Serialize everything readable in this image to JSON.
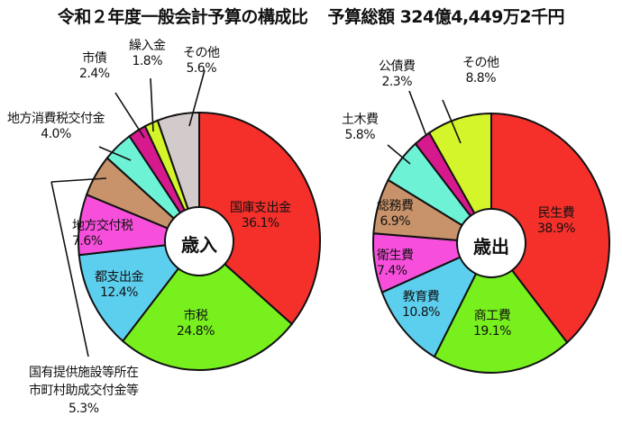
{
  "title": {
    "main": "令和２年度一般会計予算の構成比",
    "total_label": "予算総額",
    "total_value": "324億4,449万2千円"
  },
  "chart_data": [
    {
      "type": "pie",
      "title": "歳入",
      "unit": "%",
      "categories": [
        "国庫支出金",
        "市税",
        "都支出金",
        "国有提供施設等所在市町村助成交付金等",
        "地方交付税",
        "地方消費税交付金",
        "市債",
        "繰入金",
        "その他"
      ],
      "values": [
        36.1,
        24.8,
        12.4,
        5.3,
        7.6,
        4.0,
        2.4,
        1.8,
        5.6
      ],
      "slice_order_clockwise_from_top": [
        "国庫支出金",
        "市税",
        "都支出金",
        "地方交付税",
        "国有提供施設等所在市町村助成交付金等",
        "地方消費税交付金",
        "市債",
        "繰入金",
        "その他"
      ],
      "colors": {
        "国庫支出金": "#f5302b",
        "市税": "#78f01e",
        "都支出金": "#5dcfee",
        "地方交付税": "#f74fdc",
        "国有提供施設等所在市町村助成交付金等": "#c8926a",
        "地方消費税交付金": "#6ef2d6",
        "市債": "#d6198c",
        "繰入金": "#d4f52a",
        "その他": "#d3cbcb"
      }
    },
    {
      "type": "pie",
      "title": "歳出",
      "unit": "%",
      "categories": [
        "民生費",
        "商工費",
        "教育費",
        "衛生費",
        "総務費",
        "土木費",
        "公債費",
        "その他"
      ],
      "values": [
        38.9,
        19.1,
        10.8,
        7.4,
        6.9,
        5.8,
        2.3,
        8.8
      ],
      "colors": {
        "民生費": "#f5302b",
        "商工費": "#78f01e",
        "教育費": "#5dcfee",
        "衛生費": "#f74fdc",
        "総務費": "#c8926a",
        "土木費": "#6ef2d6",
        "公債費": "#d6198c",
        "その他": "#d4f52a"
      }
    }
  ],
  "revenue": {
    "center": "歳入",
    "labels": {
      "national": {
        "name": "国庫支出金",
        "pct": "36.1%"
      },
      "citytax": {
        "name": "市税",
        "pct": "24.8%"
      },
      "metro": {
        "name": "都支出金",
        "pct": "12.4%"
      },
      "localalloc": {
        "name": "地方交付税",
        "pct": "7.6%"
      },
      "facility": {
        "name1": "国有提供施設等所在",
        "name2": "市町村助成交付金等",
        "pct": "5.3%"
      },
      "consumption": {
        "name": "地方消費税交付金",
        "pct": "4.0%"
      },
      "bond": {
        "name": "市債",
        "pct": "2.4%"
      },
      "transfer": {
        "name": "繰入金",
        "pct": "1.8%"
      },
      "other": {
        "name": "その他",
        "pct": "5.6%"
      }
    }
  },
  "expenditure": {
    "center": "歳出",
    "labels": {
      "welfare": {
        "name": "民生費",
        "pct": "38.9%"
      },
      "commerce": {
        "name": "商工費",
        "pct": "19.1%"
      },
      "education": {
        "name": "教育費",
        "pct": "10.8%"
      },
      "health": {
        "name": "衛生費",
        "pct": "7.4%"
      },
      "general": {
        "name": "総務費",
        "pct": "6.9%"
      },
      "civil": {
        "name": "土木費",
        "pct": "5.8%"
      },
      "debt": {
        "name": "公債費",
        "pct": "2.3%"
      },
      "other": {
        "name": "その他",
        "pct": "8.8%"
      }
    }
  }
}
